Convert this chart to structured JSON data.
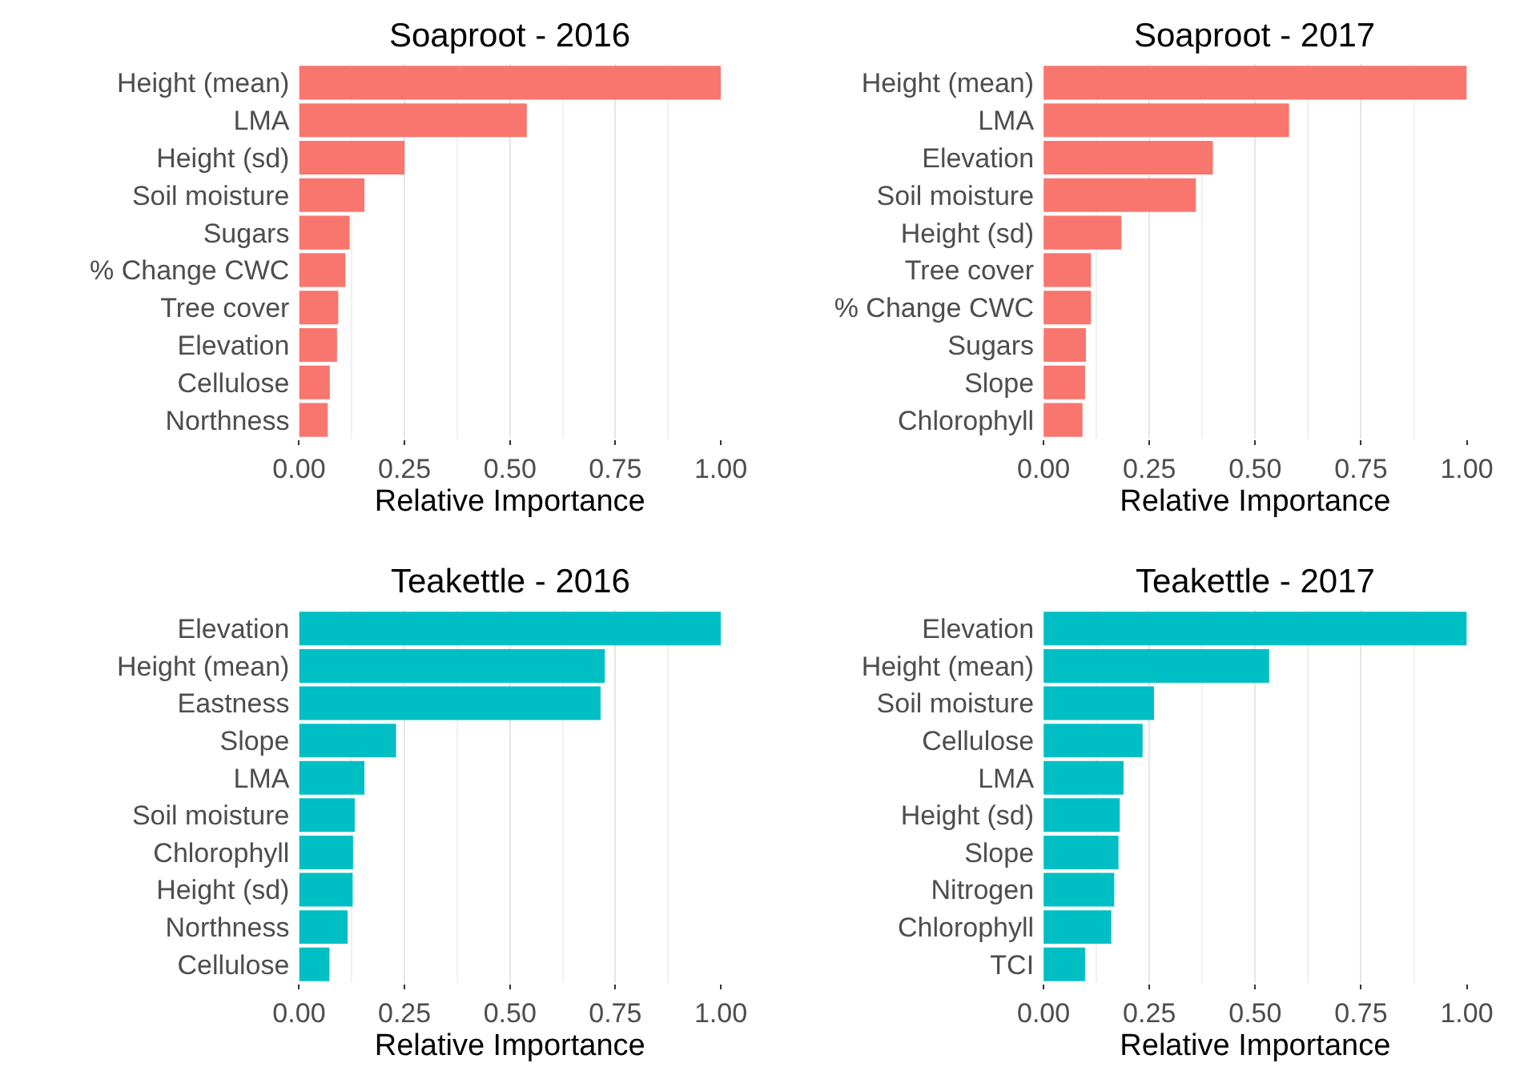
{
  "chart_data": [
    {
      "type": "bar",
      "orientation": "horizontal",
      "title": "Soaproot - 2016",
      "xlabel": "Relative Importance",
      "color": "#f8766d",
      "grid": "x",
      "xlim": [
        0,
        1
      ],
      "xticks": [
        {
          "value": 0,
          "label": "0.00"
        },
        {
          "value": 0.25,
          "label": "0.25"
        },
        {
          "value": 0.5,
          "label": "0.50"
        },
        {
          "value": 0.75,
          "label": "0.75"
        },
        {
          "value": 1,
          "label": "1.00"
        }
      ],
      "categories": [
        "Height (mean)",
        "LMA",
        "Height (sd)",
        "Soil moisture",
        "Sugars",
        "% Change CWC",
        "Tree cover",
        "Elevation",
        "Cellulose",
        "Northness"
      ],
      "values": [
        1.0,
        0.54,
        0.25,
        0.155,
        0.12,
        0.11,
        0.093,
        0.09,
        0.073,
        0.068
      ]
    },
    {
      "type": "bar",
      "orientation": "horizontal",
      "title": "Soaproot - 2017",
      "xlabel": "Relative Importance",
      "color": "#f8766d",
      "grid": "x",
      "xlim": [
        0,
        1
      ],
      "xticks": [
        {
          "value": 0,
          "label": "0.00"
        },
        {
          "value": 0.25,
          "label": "0.25"
        },
        {
          "value": 0.5,
          "label": "0.50"
        },
        {
          "value": 0.75,
          "label": "0.75"
        },
        {
          "value": 1,
          "label": "1.00"
        }
      ],
      "categories": [
        "Height (mean)",
        "LMA",
        "Elevation",
        "Soil moisture",
        "Height (sd)",
        "Tree cover",
        "% Change CWC",
        "Sugars",
        "Slope",
        "Chlorophyll"
      ],
      "values": [
        1.0,
        0.58,
        0.4,
        0.36,
        0.184,
        0.112,
        0.112,
        0.1,
        0.098,
        0.092
      ]
    },
    {
      "type": "bar",
      "orientation": "horizontal",
      "title": "Teakettle - 2016",
      "xlabel": "Relative Importance",
      "color": "#00bfc4",
      "grid": "x",
      "xlim": [
        0,
        1
      ],
      "xticks": [
        {
          "value": 0,
          "label": "0.00"
        },
        {
          "value": 0.25,
          "label": "0.25"
        },
        {
          "value": 0.5,
          "label": "0.50"
        },
        {
          "value": 0.75,
          "label": "0.75"
        },
        {
          "value": 1,
          "label": "1.00"
        }
      ],
      "categories": [
        "Elevation",
        "Height (mean)",
        "Eastness",
        "Slope",
        "LMA",
        "Soil moisture",
        "Chlorophyll",
        "Height (sd)",
        "Northness",
        "Cellulose"
      ],
      "values": [
        1.0,
        0.725,
        0.715,
        0.23,
        0.155,
        0.132,
        0.128,
        0.127,
        0.115,
        0.072
      ]
    },
    {
      "type": "bar",
      "orientation": "horizontal",
      "title": "Teakettle - 2017",
      "xlabel": "Relative Importance",
      "color": "#00bfc4",
      "grid": "x",
      "xlim": [
        0,
        1
      ],
      "xticks": [
        {
          "value": 0,
          "label": "0.00"
        },
        {
          "value": 0.25,
          "label": "0.25"
        },
        {
          "value": 0.5,
          "label": "0.50"
        },
        {
          "value": 0.75,
          "label": "0.75"
        },
        {
          "value": 1,
          "label": "1.00"
        }
      ],
      "categories": [
        "Elevation",
        "Height (mean)",
        "Soil moisture",
        "Cellulose",
        "LMA",
        "Height (sd)",
        "Slope",
        "Nitrogen",
        "Chlorophyll",
        "TCI"
      ],
      "values": [
        1.0,
        0.533,
        0.261,
        0.234,
        0.189,
        0.18,
        0.177,
        0.167,
        0.16,
        0.098
      ]
    }
  ]
}
